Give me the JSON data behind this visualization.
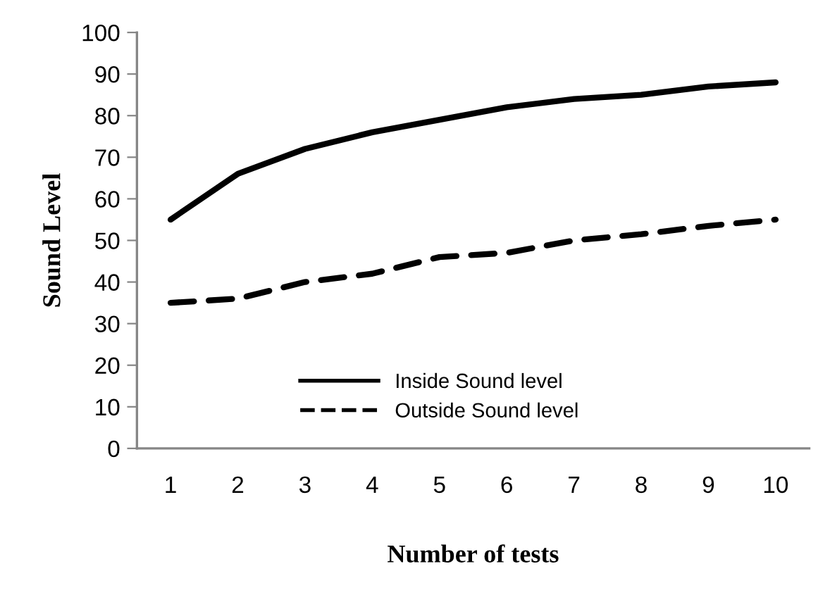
{
  "chart_data": {
    "type": "line",
    "xlabel": "Number of tests",
    "ylabel": "Sound Level",
    "categories": [
      "1",
      "2",
      "3",
      "4",
      "5",
      "6",
      "7",
      "8",
      "9",
      "10"
    ],
    "series": [
      {
        "name": "Inside Sound level",
        "color": "#000000",
        "line_style": "solid",
        "values": [
          55,
          66,
          72,
          76,
          79,
          82,
          84,
          85,
          87,
          88
        ]
      },
      {
        "name": "Outside Sound level",
        "color": "#000000",
        "line_style": "dashed",
        "values": [
          35,
          36,
          40,
          42,
          46,
          47,
          50,
          51.5,
          53.5,
          55
        ]
      }
    ],
    "ylim": [
      0,
      100
    ],
    "yticks": [
      0,
      10,
      20,
      30,
      40,
      50,
      60,
      70,
      80,
      90,
      100
    ],
    "grid": false,
    "legend": "bottom",
    "marker": "none"
  }
}
